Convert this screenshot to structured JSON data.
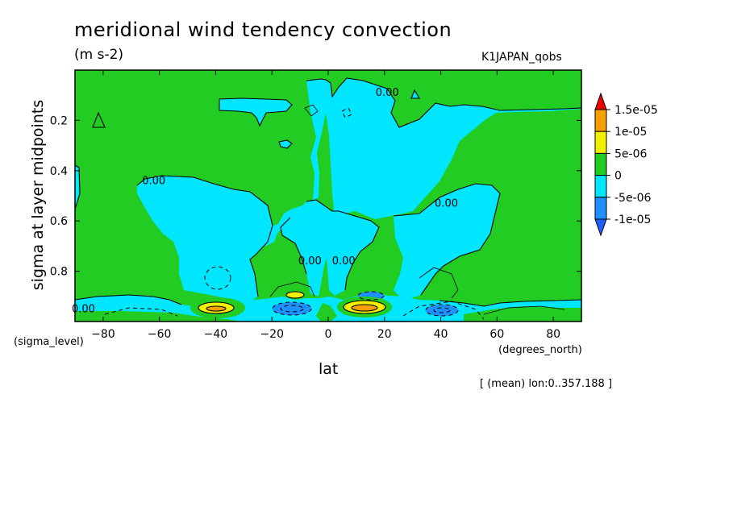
{
  "header": {
    "title": "meridional wind tendency convection",
    "units": "(m s-2)",
    "run": "K1JAPAN_qobs",
    "note": "[ (mean) lon:0..357.188 ]"
  },
  "chart_data": {
    "type": "contour",
    "xlabel": "lat",
    "xunit": "(degrees_north)",
    "ylabel": "sigma at layer midpoints",
    "yunit": "(sigma_level)",
    "xlim": [
      -90,
      90
    ],
    "ylim": [
      1.0,
      0.0
    ],
    "xticks": [
      -80,
      -60,
      -40,
      -20,
      0,
      20,
      40,
      60,
      80
    ],
    "xtick_labels": [
      "−80",
      "−60",
      "−40",
      "−20",
      "0",
      "20",
      "40",
      "60",
      "80"
    ],
    "yticks": [
      0.2,
      0.4,
      0.6,
      0.8
    ],
    "ytick_labels": [
      "0.2",
      "0.4",
      "0.6",
      "0.8"
    ],
    "contour_labels": [
      {
        "text": "0.00",
        "lat": 21,
        "sigma": 0.09
      },
      {
        "text": "0.00",
        "lat": -62,
        "sigma": 0.44
      },
      {
        "text": "0.00",
        "lat": 42,
        "sigma": 0.53
      },
      {
        "text": "0.00",
        "lat": -87,
        "sigma": 0.95
      },
      {
        "text": "0.00",
        "lat": -6.5,
        "sigma": 0.76
      },
      {
        "text": "0.00",
        "lat": 5.5,
        "sigma": 0.76
      }
    ],
    "colorbar": {
      "levels": [
        {
          "label": "1.5e-05",
          "color": "#f00000"
        },
        {
          "label": "1e-05",
          "color": "#f5a000"
        },
        {
          "label": "5e-06",
          "color": "#f0f000"
        },
        {
          "label": "0",
          "color": "#22cc22"
        },
        {
          "label": "-5e-06",
          "color": "#00e6ff"
        },
        {
          "label": "-1e-05",
          "color": "#1e90ff"
        }
      ],
      "bands": [
        "#f00000",
        "#f5a000",
        "#f0f000",
        "#22cc22",
        "#00e6ff",
        "#1e90ff",
        "#1e60ff"
      ]
    },
    "fills": {
      "green": "#22cc22",
      "cyan": "#00e6ff",
      "blue": "#1e90ff",
      "yellow": "#f0f000",
      "orange": "#f5a000"
    }
  }
}
